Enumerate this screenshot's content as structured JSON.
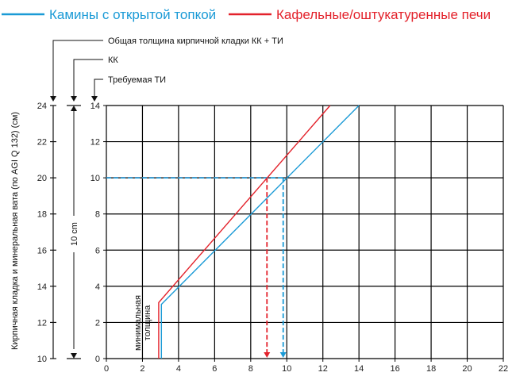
{
  "chart_data": {
    "type": "line",
    "legend": [
      {
        "label": "Камины с открытой топкой",
        "color": "#1a9ad6"
      },
      {
        "label": "Кафельные/оштукатуренные печи",
        "color": "#e3222b"
      }
    ],
    "annotations": {
      "total": "Общая толщина кирпичной кладки КК + ТИ",
      "kk": "КК",
      "ti": "Требуемая ТИ",
      "min_line1": "минимальная",
      "min_line2": "толщина",
      "span": "10 cm"
    },
    "left_axis_label": "Кирпичная кладка и минеральная вата (по AGI Q 132) (см)",
    "xlim": [
      0,
      22
    ],
    "ylim": [
      0,
      14
    ],
    "x_ticks": [
      "0",
      "2",
      "4",
      "6",
      "8",
      "10",
      "12",
      "14",
      "16",
      "18",
      "20",
      "22"
    ],
    "y_ticks": [
      "0",
      "2",
      "4",
      "6",
      "8",
      "10",
      "12",
      "14"
    ],
    "left_ticks": [
      "10",
      "12",
      "14",
      "16",
      "18",
      "20",
      "22",
      "24"
    ],
    "series": [
      {
        "name": "Камины с открытой топкой",
        "color": "#1a9ad6",
        "points": [
          [
            3.05,
            0
          ],
          [
            3.05,
            3.0
          ],
          [
            14.0,
            14.0
          ]
        ]
      },
      {
        "name": "Кафельные/оштукатуренные печи",
        "color": "#e3222b",
        "points": [
          [
            2.9,
            0
          ],
          [
            2.9,
            3.1
          ],
          [
            12.4,
            14.0
          ]
        ]
      }
    ],
    "guides": [
      {
        "color": "#e3222b",
        "y": 10,
        "x": 8.9
      },
      {
        "color": "#1a9ad6",
        "y": 10,
        "x": 9.8
      }
    ]
  }
}
